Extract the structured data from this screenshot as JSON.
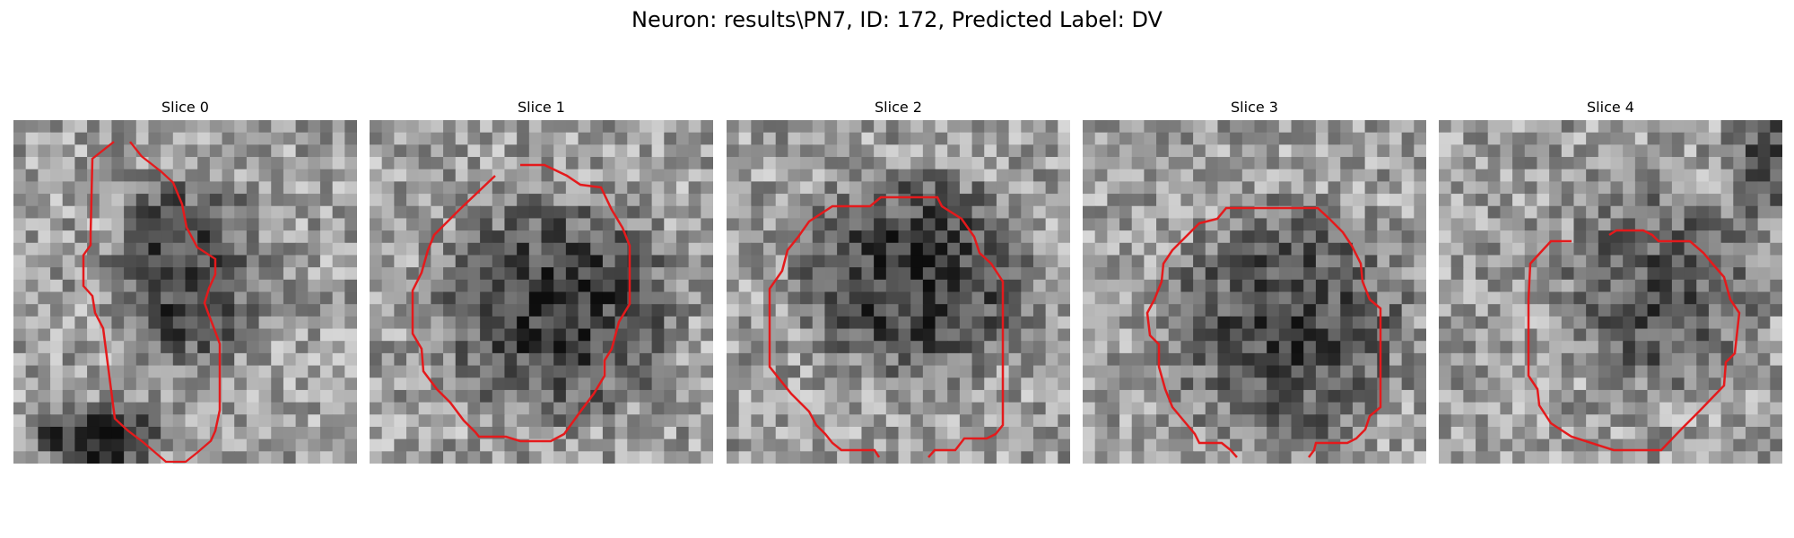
{
  "figure": {
    "title": "Neuron: results\\PN7, ID: 172, Predicted Label: DV"
  },
  "slices": [
    {
      "title": "Slice 0",
      "seed": 11,
      "cell_blobs": [
        [
          0.5,
          0.45,
          0.42,
          0.55,
          -0.38
        ],
        [
          0.25,
          0.92,
          0.35,
          0.18,
          -0.55
        ]
      ]
    },
    {
      "title": "Slice 1",
      "seed": 23,
      "cell_blobs": [
        [
          0.55,
          0.55,
          0.65,
          0.6,
          -0.4
        ]
      ]
    },
    {
      "title": "Slice 2",
      "seed": 37,
      "cell_blobs": [
        [
          0.55,
          0.45,
          0.65,
          0.55,
          -0.42
        ]
      ]
    },
    {
      "title": "Slice 3",
      "seed": 53,
      "cell_blobs": [
        [
          0.6,
          0.6,
          0.65,
          0.65,
          -0.35
        ]
      ]
    },
    {
      "title": "Slice 4",
      "seed": 71,
      "cell_blobs": [
        [
          0.65,
          0.5,
          0.55,
          0.55,
          -0.3
        ],
        [
          0.95,
          0.1,
          0.25,
          0.35,
          -0.3
        ]
      ]
    }
  ],
  "contour_color": "#e41a1c"
}
